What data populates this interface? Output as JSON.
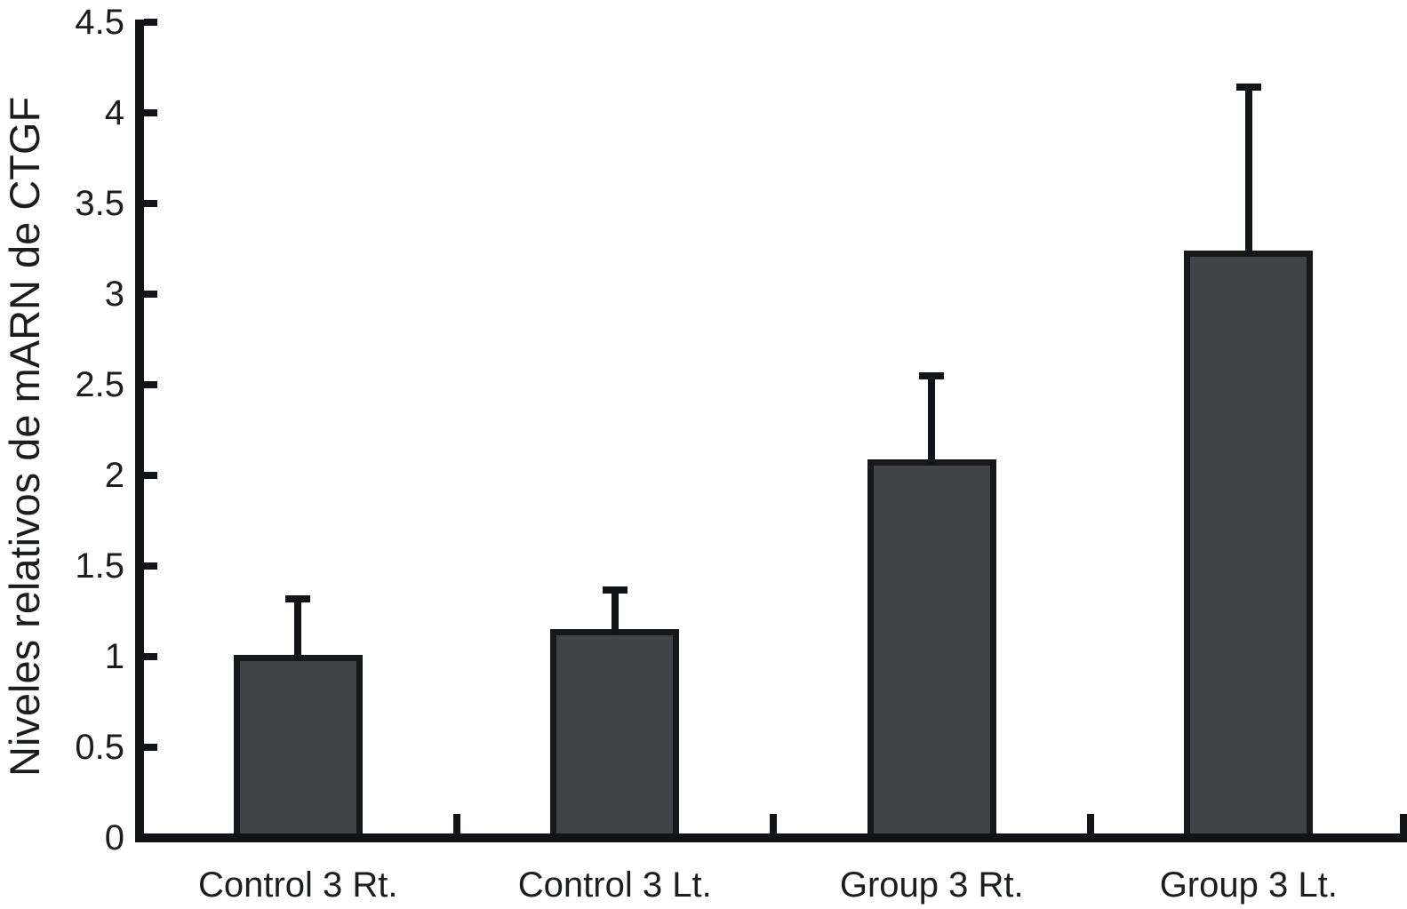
{
  "chart_data": {
    "type": "bar",
    "title": "",
    "xlabel": "",
    "ylabel": "Niveles relativos de mARN de CTGF",
    "categories": [
      "Control 3 Rt.",
      "Control 3 Lt.",
      "Group 3 Rt.",
      "Group 3 Lt."
    ],
    "values": [
      1.01,
      1.15,
      2.09,
      3.24
    ],
    "errors_upper": [
      0.31,
      0.22,
      0.46,
      0.9
    ],
    "ylim": [
      0,
      4.5
    ],
    "yticks": [
      0,
      0.5,
      1,
      1.5,
      2,
      2.5,
      3,
      3.5,
      4,
      4.5
    ],
    "ytick_labels": [
      "0",
      "0.5",
      "1",
      "1.5",
      "2",
      "2.5",
      "3",
      "3.5",
      "4",
      "4.5"
    ],
    "grid": false,
    "legend_position": "none",
    "bar_color": "#414347",
    "bar_border_color": "#17181a",
    "axis_color": "#121316",
    "text_color": "#1c1d1f",
    "background_color": "#ffffff"
  }
}
